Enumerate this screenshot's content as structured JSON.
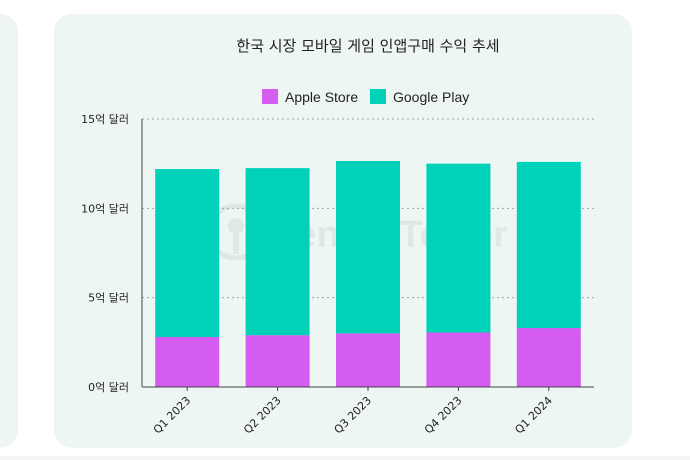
{
  "chart_data": {
    "type": "bar",
    "stacked": true,
    "title": "한국 시장 모바일 게임 인앱구매 수익 추세",
    "xlabel": "",
    "ylabel": "",
    "categories": [
      "Q1 2023",
      "Q2 2023",
      "Q3 2023",
      "Q4 2023",
      "Q1 2024"
    ],
    "series": [
      {
        "name": "Apple Store",
        "color": "#d45cf0",
        "values": [
          2.8,
          2.9,
          3.0,
          3.05,
          3.3
        ]
      },
      {
        "name": "Google Play",
        "color": "#00d2b9",
        "values": [
          9.4,
          9.35,
          9.65,
          9.45,
          9.3
        ]
      }
    ],
    "ylim": [
      0,
      15
    ],
    "yticks": [
      0,
      5,
      10,
      15
    ],
    "ytick_labels": [
      "0억 달러",
      "5억 달러",
      "10억 달러",
      "15억 달러"
    ],
    "grid": true,
    "legend_position": "top-center",
    "watermark": "SensorTower"
  }
}
